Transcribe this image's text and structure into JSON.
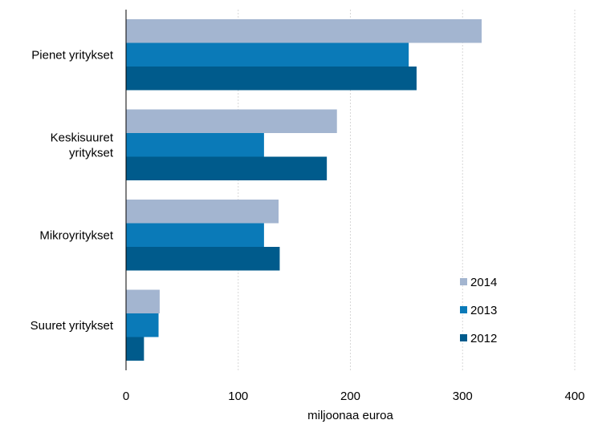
{
  "chart_data": {
    "type": "bar",
    "orientation": "horizontal",
    "categories": [
      "Pienet yritykset",
      "Keskisuuret yritykset",
      "Mikroyritykset",
      "Suuret yritykset"
    ],
    "category_labels": [
      [
        "Pienet yritykset"
      ],
      [
        "Keskisuuret",
        "yritykset"
      ],
      [
        "Mikroyritykset"
      ],
      [
        "Suuret yritykset"
      ]
    ],
    "series": [
      {
        "name": "2014",
        "color": "#a3b5d0",
        "values": [
          317,
          188,
          136,
          30
        ]
      },
      {
        "name": "2013",
        "color": "#0a7ab8",
        "values": [
          252,
          123,
          123,
          29
        ]
      },
      {
        "name": "2012",
        "color": "#005b8c",
        "values": [
          259,
          179,
          137,
          16
        ]
      }
    ],
    "xlabel": "miljoonaa euroa",
    "ylabel": "",
    "xlim": [
      0,
      400
    ],
    "xticks": [
      0,
      100,
      200,
      300,
      400
    ],
    "grid": true,
    "legend": "bottom-right"
  }
}
